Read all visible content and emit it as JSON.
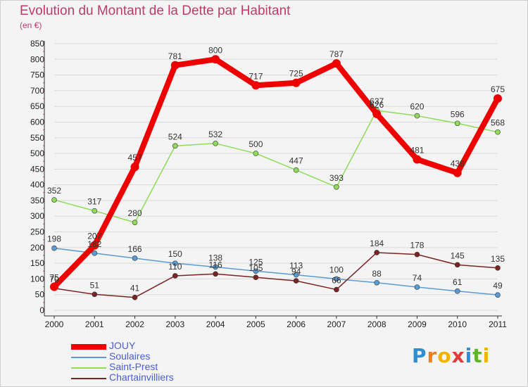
{
  "header": {
    "title": "Evolution du Montant de la Dette par Habitant",
    "subtitle": "(en €)"
  },
  "brand": {
    "name": "Proxiti",
    "letter_colors": [
      "#2f8fd1",
      "#e8821e",
      "#f0b400",
      "#e03a3a",
      "#2f8fd1",
      "#5fb52a",
      "#f0b400"
    ]
  },
  "chart_data": {
    "type": "line",
    "title": "Evolution du Montant de la Dette par Habitant",
    "ylabel": "(en €)",
    "xlabel": "",
    "x": [
      "2000",
      "2001",
      "2002",
      "2003",
      "2004",
      "2005",
      "2006",
      "2007",
      "2008",
      "2009",
      "2010",
      "2011"
    ],
    "ylim": [
      0,
      850
    ],
    "yticks": [
      "0",
      "50",
      "100",
      "150",
      "200",
      "250",
      "300",
      "350",
      "400",
      "450",
      "500",
      "550",
      "600",
      "650",
      "700",
      "750",
      "800",
      "850"
    ],
    "grid": "horizontal",
    "legend_position": "bottom-left",
    "series": [
      {
        "name": "JOUY",
        "color": "#ee0000",
        "values": [
          75,
          207,
          457,
          781,
          800,
          717,
          725,
          787,
          626,
          481,
          438,
          675
        ],
        "labels": [
          "75",
          "207",
          "457",
          "781",
          "800",
          "717",
          "725",
          "787",
          "626",
          "481",
          "438",
          "675"
        ]
      },
      {
        "name": "Soulaires",
        "color": "#5b9bd5",
        "values": [
          198,
          182,
          166,
          150,
          138,
          125,
          113,
          100,
          88,
          74,
          61,
          49
        ],
        "labels": [
          "198",
          "182",
          "166",
          "150",
          "138",
          "125",
          "113",
          "100",
          "88",
          "74",
          "61",
          "49"
        ]
      },
      {
        "name": "Saint-Prest",
        "color": "#8fdc5a",
        "values": [
          352,
          317,
          280,
          524,
          532,
          500,
          447,
          393,
          637,
          620,
          596,
          568
        ],
        "labels": [
          "352",
          "317",
          "280",
          "524",
          "532",
          "500",
          "447",
          "393",
          "637",
          "620",
          "596",
          "568"
        ]
      },
      {
        "name": "Chartainvilliers",
        "color": "#7a2424",
        "values": [
          70,
          51,
          41,
          110,
          116,
          105,
          94,
          66,
          184,
          178,
          145,
          135
        ],
        "labels": [
          "70",
          "51",
          "41",
          "110",
          "116",
          "105",
          "94",
          "66",
          "184",
          "178",
          "145",
          "135"
        ]
      }
    ]
  }
}
